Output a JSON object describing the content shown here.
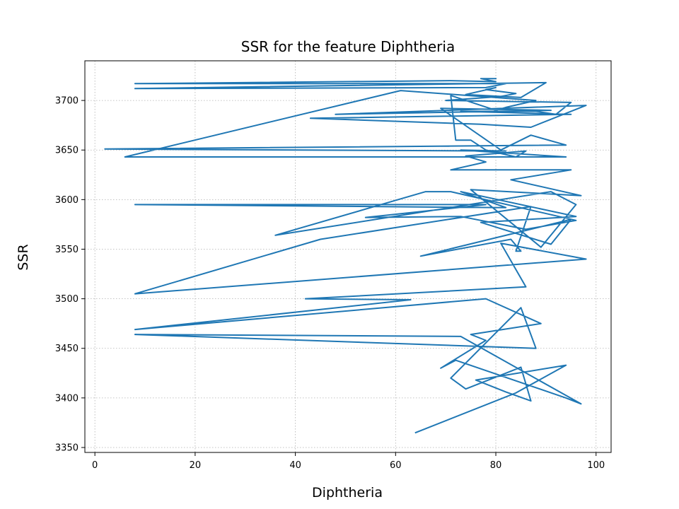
{
  "chart_data": {
    "type": "line",
    "title": "SSR for the feature Diphtheria",
    "xlabel": "Diphtheria",
    "ylabel": "SSR",
    "xlim": [
      -2,
      103
    ],
    "ylim": [
      3345,
      3740
    ],
    "xticks": [
      0,
      20,
      40,
      60,
      80,
      100
    ],
    "yticks": [
      3350,
      3400,
      3450,
      3500,
      3550,
      3600,
      3650,
      3700
    ],
    "grid": true,
    "grid_style": "dotted",
    "series_color": "#1f77b4",
    "x": [
      64,
      84,
      94,
      76,
      82,
      87,
      85,
      74,
      71,
      85,
      88,
      8,
      73,
      97,
      94,
      72,
      69,
      78,
      75,
      89,
      78,
      8,
      63,
      42,
      86,
      81,
      98,
      8,
      45,
      87,
      84,
      85,
      83,
      65,
      95,
      91,
      77,
      96,
      73,
      82,
      80,
      8,
      78,
      54,
      73,
      86,
      96,
      71,
      66,
      36,
      91,
      96,
      89,
      75,
      97,
      83,
      95,
      71,
      78,
      74,
      86,
      84,
      78,
      75,
      72,
      71,
      80,
      82,
      88,
      61,
      6,
      94,
      73,
      82,
      2,
      94,
      87,
      81,
      69,
      91,
      48,
      98,
      87,
      77,
      43,
      95,
      73,
      88,
      92,
      95,
      70,
      81,
      84,
      78,
      80,
      74,
      85,
      90,
      8,
      78,
      82,
      8,
      71,
      80,
      77,
      80
    ],
    "y": [
      3365,
      3405,
      3433,
      3418,
      3406,
      3397,
      3431,
      3409,
      3420,
      3491,
      3450,
      3464,
      3462,
      3394,
      3400,
      3438,
      3430,
      3458,
      3464,
      3475,
      3500,
      3469,
      3499,
      3500,
      3512,
      3556,
      3540,
      3505,
      3560,
      3593,
      3548,
      3548,
      3560,
      3543,
      3580,
      3555,
      3577,
      3583,
      3608,
      3592,
      3592,
      3595,
      3595,
      3582,
      3583,
      3570,
      3579,
      3608,
      3608,
      3564,
      3608,
      3595,
      3552,
      3610,
      3604,
      3620,
      3630,
      3630,
      3638,
      3644,
      3649,
      3643,
      3650,
      3660,
      3660,
      3705,
      3690,
      3693,
      3700,
      3710,
      3643,
      3643,
      3650,
      3649,
      3651,
      3655,
      3665,
      3650,
      3692,
      3690,
      3686,
      3695,
      3673,
      3676,
      3682,
      3686,
      3689,
      3689,
      3686,
      3698,
      3700,
      3704,
      3707,
      3711,
      3713,
      3706,
      3703,
      3718,
      3712,
      3713,
      3717,
      3717,
      3720,
      3719,
      3722,
      3722
    ]
  }
}
